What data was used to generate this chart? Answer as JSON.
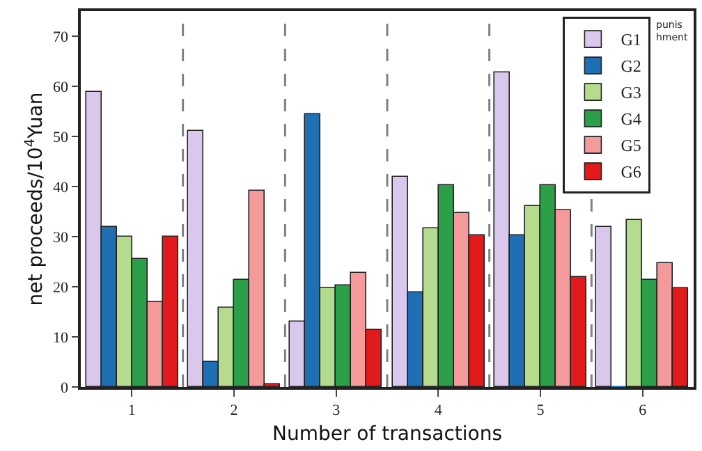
{
  "chart_data": {
    "type": "bar",
    "xlabel": "Number of transactions",
    "ylabel": "net proceeds/10$^{4}$Yuan",
    "x": [
      1,
      2,
      3,
      4,
      5,
      6
    ],
    "xlim": [
      0.5,
      6.5
    ],
    "xticks": [
      1,
      2,
      3,
      4,
      5,
      6
    ],
    "ylim": [
      0,
      75
    ],
    "yticks": [
      0,
      10,
      20,
      30,
      40,
      50,
      60,
      70
    ],
    "legend": "top right",
    "series": [
      {
        "name": "G1",
        "color": "#d9c8ec",
        "values": [
          59,
          51,
          13,
          42,
          62.8,
          32
        ]
      },
      {
        "name": "G2",
        "color": "#1f6fb4",
        "values": [
          32,
          5,
          54.5,
          19,
          30.2,
          0
        ]
      },
      {
        "name": "G3",
        "color": "#b5dc8e",
        "values": [
          30,
          15.7,
          19.6,
          31.7,
          36,
          33.4
        ]
      },
      {
        "name": "G4",
        "color": "#2ca048",
        "values": [
          25.5,
          21.4,
          20.2,
          40.4,
          40.4,
          21.5
        ]
      },
      {
        "name": "G5",
        "color": "#f49a9a",
        "values": [
          17,
          39.3,
          22.7,
          34.6,
          35.3,
          24.8
        ]
      },
      {
        "name": "G6",
        "color": "#e31a1c",
        "values": [
          30,
          0.6,
          11.5,
          30.2,
          22,
          19.7
        ]
      }
    ],
    "ref_lines": [
      {
        "axis": "x",
        "value": 1.5,
        "color": "#808080",
        "line_style": "dashed"
      },
      {
        "axis": "x",
        "value": 2.5,
        "color": "#808080",
        "line_style": "dashed"
      },
      {
        "axis": "x",
        "value": 3.5,
        "color": "#808080",
        "line_style": "dashed"
      },
      {
        "axis": "x",
        "value": 4.5,
        "color": "#808080",
        "line_style": "dashed"
      },
      {
        "axis": "x",
        "value": 5.5,
        "color": "#808080",
        "line_style": "dashed"
      }
    ],
    "annotations": [
      "punis hment"
    ]
  }
}
